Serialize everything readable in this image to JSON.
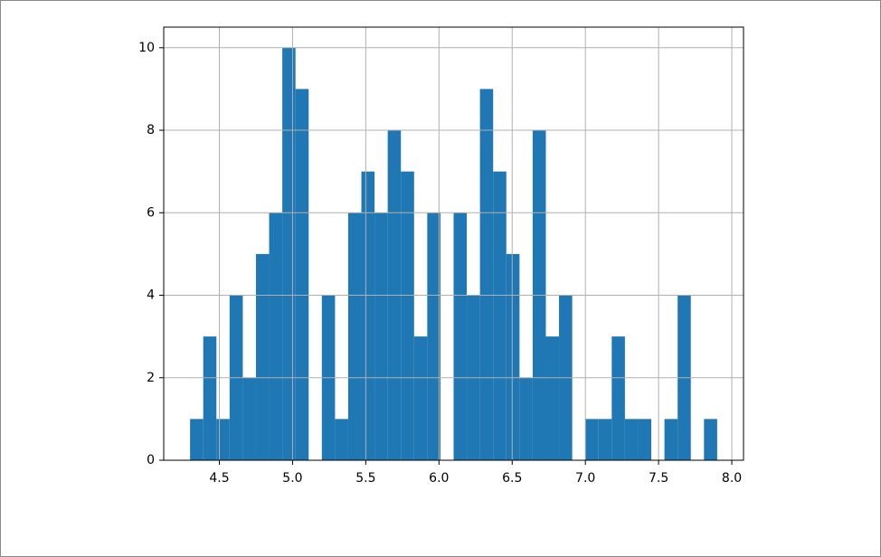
{
  "chart_data": {
    "type": "histogram",
    "bins": [
      4.3,
      4.39,
      4.48,
      4.57,
      4.66,
      4.75,
      4.84,
      4.93,
      5.02,
      5.11,
      5.2,
      5.29,
      5.38,
      5.47,
      5.56,
      5.65,
      5.74,
      5.83,
      5.92,
      6.01,
      6.1,
      6.19,
      6.28,
      6.37,
      6.46,
      6.55,
      6.64,
      6.73,
      6.82,
      6.91,
      7.0,
      7.09,
      7.18,
      7.27,
      7.36,
      7.45,
      7.54,
      7.63,
      7.72,
      7.81,
      7.9
    ],
    "values": [
      1,
      3,
      1,
      4,
      2,
      5,
      6,
      10,
      9,
      0,
      4,
      1,
      6,
      7,
      6,
      8,
      7,
      3,
      6,
      0,
      6,
      4,
      9,
      7,
      5,
      2,
      8,
      3,
      4,
      0,
      1,
      1,
      3,
      1,
      1,
      0,
      1,
      4,
      0,
      1
    ],
    "color": "#1f77b4",
    "xlim": [
      4.12,
      8.08
    ],
    "xticks": [
      4.5,
      {
        "value": 5,
        "label": "5.0"
      },
      5.5,
      {
        "value": 6,
        "label": "6.0"
      },
      6.5,
      {
        "value": 7,
        "label": "7.0"
      },
      7.5,
      {
        "value": 8,
        "label": "8.0"
      }
    ],
    "ylim": [
      0,
      10.5
    ],
    "yticks": [
      0,
      2,
      4,
      6,
      8,
      10
    ],
    "grid": true
  }
}
